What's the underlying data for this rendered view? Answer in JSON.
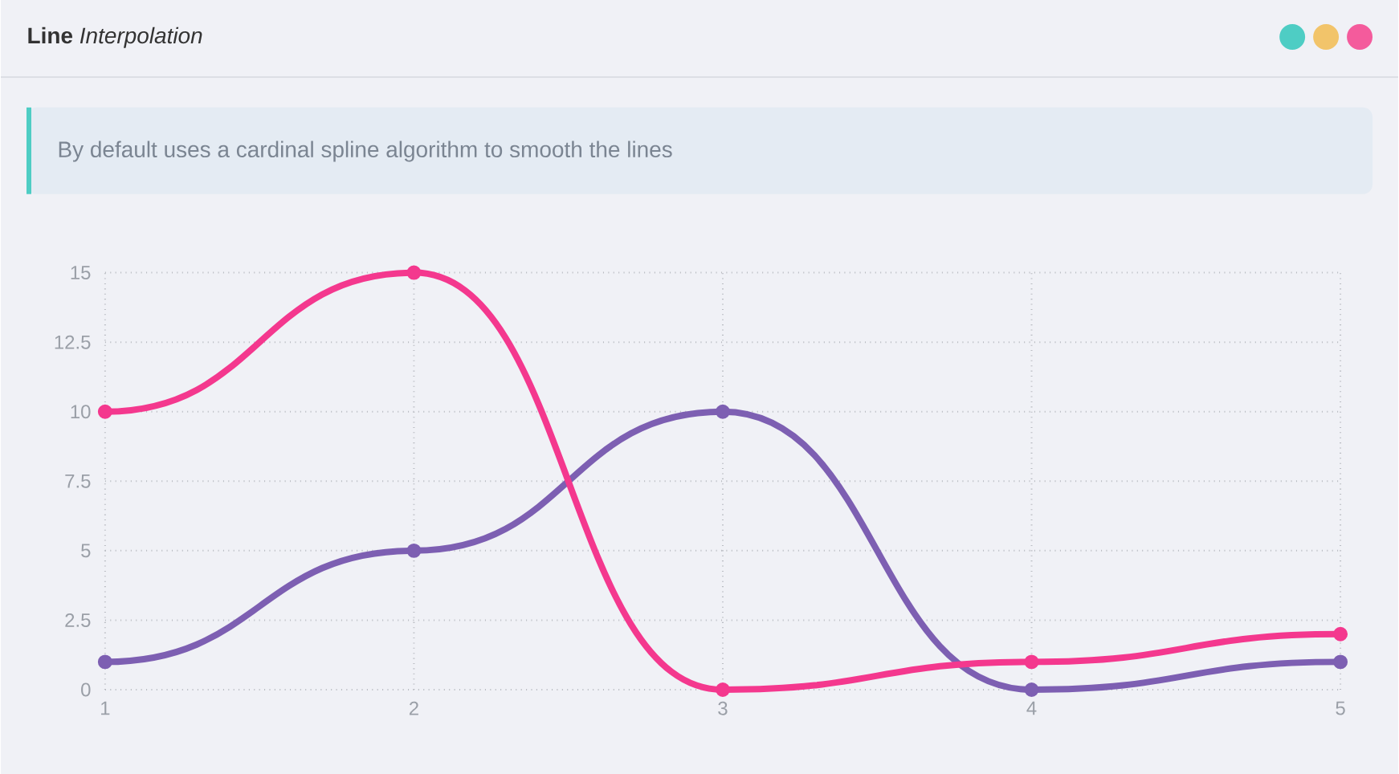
{
  "chart_data": {
    "type": "line",
    "title": "**Line** *Interpolation*",
    "annotations": [
      "By default uses a cardinal spline algorithm to smooth the lines"
    ],
    "categories": [
      "1",
      "2",
      "3",
      "4",
      "5"
    ],
    "series": [
      {
        "color": "#7d5fb2",
        "values": [
          1,
          5,
          10,
          0,
          1
        ]
      },
      {
        "color": "#f4388e",
        "values": [
          10,
          15,
          0,
          1,
          2
        ]
      }
    ],
    "ylim": [
      0,
      15
    ],
    "yticks": [
      0,
      2.5,
      5,
      7.5,
      10,
      12.5,
      15
    ],
    "grid": true,
    "marker": "circle",
    "line_style": "solid"
  }
}
